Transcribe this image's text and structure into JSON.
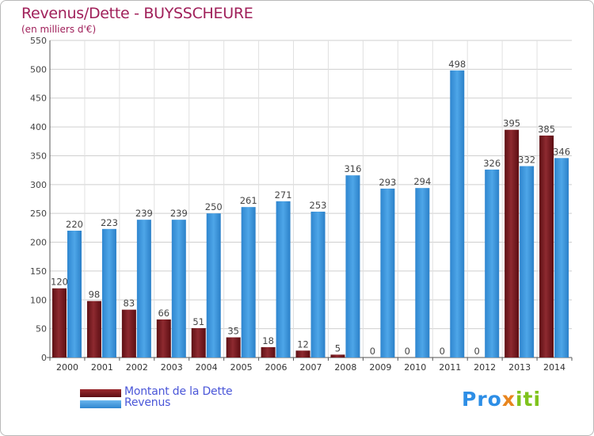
{
  "title": "Revenus/Dette - BUYSSCHEURE",
  "subtitle": "(en milliers d'€)",
  "colors": {
    "debt": "#7a1a1f",
    "revenue": "#3f99e0",
    "accent": "#a0205a",
    "legend_text": "#4a56d8"
  },
  "legend": [
    {
      "label": "Montant de la Dette",
      "icon": "dark-red-bar-swatch"
    },
    {
      "label": "Revenus",
      "icon": "blue-bar-swatch"
    }
  ],
  "logo": {
    "part1": "Pro",
    "part2": "x",
    "part3": "iti"
  },
  "chart_data": {
    "type": "bar",
    "title": "Revenus/Dette - BUYSSCHEURE",
    "xlabel": "",
    "ylabel": "(en milliers d'€)",
    "ylim": [
      0,
      550
    ],
    "yticks": [
      0,
      50,
      100,
      150,
      200,
      250,
      300,
      350,
      400,
      450,
      500,
      550
    ],
    "grid": true,
    "legend_position": "bottom-left",
    "categories": [
      "2000",
      "2001",
      "2002",
      "2003",
      "2004",
      "2005",
      "2006",
      "2007",
      "2008",
      "2009",
      "2010",
      "2011",
      "2012",
      "2013",
      "2014"
    ],
    "series": [
      {
        "name": "Montant de la Dette",
        "values": [
          120,
          98,
          83,
          66,
          51,
          35,
          18,
          12,
          5,
          0,
          0,
          0,
          0,
          395,
          385
        ]
      },
      {
        "name": "Revenus",
        "values": [
          220,
          223,
          239,
          239,
          250,
          261,
          271,
          253,
          316,
          293,
          294,
          498,
          326,
          332,
          346
        ]
      }
    ]
  }
}
